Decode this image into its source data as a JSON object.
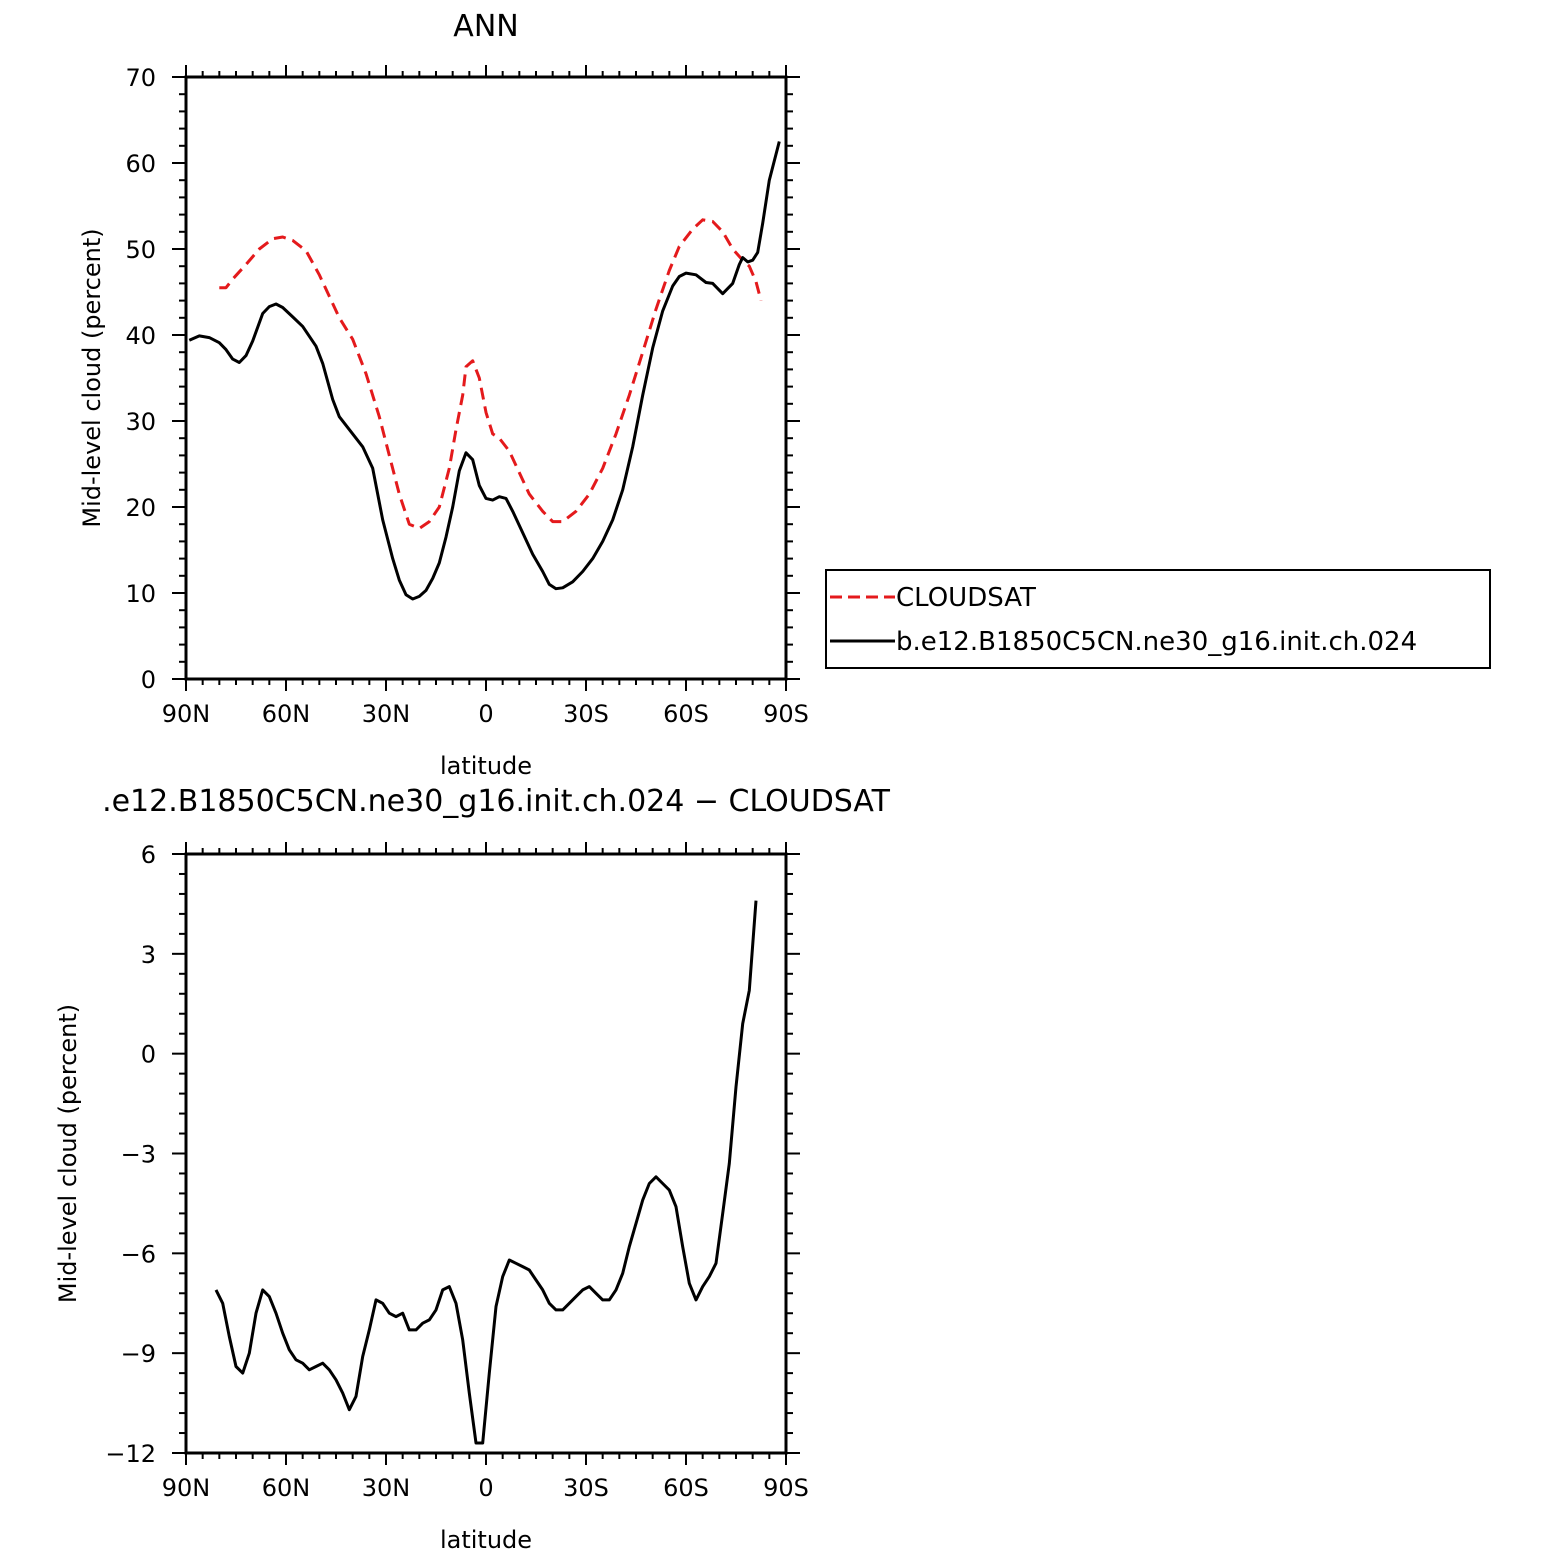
{
  "colors": {
    "obs": "#e41a1c",
    "model": "#000000",
    "axis": "#000000",
    "background": "#ffffff"
  },
  "chart_data": [
    {
      "type": "line",
      "title": "ANN",
      "xlabel": "latitude",
      "ylabel": "Mid-level cloud (percent)",
      "xlim": [
        90,
        -90
      ],
      "ylim": [
        0,
        70
      ],
      "xticks": [
        {
          "value": 90,
          "label": "90N"
        },
        {
          "value": 60,
          "label": "60N"
        },
        {
          "value": 30,
          "label": "30N"
        },
        {
          "value": 0,
          "label": "0"
        },
        {
          "value": -30,
          "label": "30S"
        },
        {
          "value": -60,
          "label": "60S"
        },
        {
          "value": -90,
          "label": "90S"
        }
      ],
      "yticks": [
        {
          "value": 0,
          "label": "0"
        },
        {
          "value": 10,
          "label": "10"
        },
        {
          "value": 20,
          "label": "20"
        },
        {
          "value": 30,
          "label": "30"
        },
        {
          "value": 40,
          "label": "40"
        },
        {
          "value": 50,
          "label": "50"
        },
        {
          "value": 60,
          "label": "60"
        },
        {
          "value": 70,
          "label": "70"
        }
      ],
      "grid": false,
      "legend": "right",
      "series": [
        {
          "name": "CLOUDSAT",
          "style": "dashed",
          "color": "#e41a1c",
          "points": [
            [
              80,
              45.5
            ],
            [
              78,
              45.5
            ],
            [
              76,
              46.5
            ],
            [
              72,
              48.2
            ],
            [
              68,
              50
            ],
            [
              64,
              51.2
            ],
            [
              61,
              51.4
            ],
            [
              58,
              51
            ],
            [
              54,
              49.8
            ],
            [
              50,
              47
            ],
            [
              47,
              44.5
            ],
            [
              44,
              42
            ],
            [
              40,
              39.5
            ],
            [
              36,
              35.5
            ],
            [
              32,
              30.5
            ],
            [
              29,
              26
            ],
            [
              26,
              21.5
            ],
            [
              23,
              18
            ],
            [
              20,
              17.5
            ],
            [
              17,
              18.3
            ],
            [
              14,
              20
            ],
            [
              11,
              24.5
            ],
            [
              9,
              29
            ],
            [
              7,
              33
            ],
            [
              6,
              36.3
            ],
            [
              4,
              37
            ],
            [
              2,
              35
            ],
            [
              0,
              31
            ],
            [
              -2,
              28.5
            ],
            [
              -4,
              28
            ],
            [
              -7,
              26.5
            ],
            [
              -10,
              24
            ],
            [
              -13,
              21.5
            ],
            [
              -17,
              19.5
            ],
            [
              -20,
              18.3
            ],
            [
              -23,
              18.3
            ],
            [
              -27,
              19.5
            ],
            [
              -31,
              21.5
            ],
            [
              -35,
              24.5
            ],
            [
              -39,
              28.5
            ],
            [
              -43,
              33
            ],
            [
              -47,
              38
            ],
            [
              -51,
              43
            ],
            [
              -55,
              47.5
            ],
            [
              -58,
              50.3
            ],
            [
              -62,
              52.3
            ],
            [
              -65,
              53.4
            ],
            [
              -68,
              53.2
            ],
            [
              -71,
              52
            ],
            [
              -74,
              50
            ],
            [
              -77,
              48.7
            ],
            [
              -79,
              48
            ],
            [
              -81,
              46.2
            ],
            [
              -82.5,
              44
            ]
          ]
        },
        {
          "name": "b.e12.B1850C5CN.ne30_g16.init.ch.024",
          "style": "solid",
          "color": "#000000",
          "points": [
            [
              89,
              39.4
            ],
            [
              86,
              39.9
            ],
            [
              83,
              39.7
            ],
            [
              80,
              39.1
            ],
            [
              78,
              38.3
            ],
            [
              76,
              37.2
            ],
            [
              74,
              36.8
            ],
            [
              72,
              37.6
            ],
            [
              70,
              39.3
            ],
            [
              67,
              42.5
            ],
            [
              65,
              43.3
            ],
            [
              63,
              43.6
            ],
            [
              61,
              43.2
            ],
            [
              58,
              42.1
            ],
            [
              55,
              41
            ],
            [
              51,
              38.7
            ],
            [
              49,
              36.7
            ],
            [
              46,
              32.5
            ],
            [
              44,
              30.5
            ],
            [
              41,
              29
            ],
            [
              37,
              27
            ],
            [
              34,
              24.5
            ],
            [
              31,
              18.5
            ],
            [
              28,
              14
            ],
            [
              26,
              11.5
            ],
            [
              24,
              9.8
            ],
            [
              22,
              9.3
            ],
            [
              20,
              9.6
            ],
            [
              18,
              10.3
            ],
            [
              16,
              11.7
            ],
            [
              14,
              13.5
            ],
            [
              12,
              16.5
            ],
            [
              10,
              20
            ],
            [
              8,
              24.2
            ],
            [
              6,
              26.3
            ],
            [
              4,
              25.5
            ],
            [
              2,
              22.5
            ],
            [
              0,
              21
            ],
            [
              -2,
              20.8
            ],
            [
              -4,
              21.2
            ],
            [
              -6,
              21
            ],
            [
              -8,
              19.5
            ],
            [
              -11,
              17
            ],
            [
              -14,
              14.5
            ],
            [
              -17,
              12.5
            ],
            [
              -19,
              11
            ],
            [
              -21,
              10.5
            ],
            [
              -23,
              10.6
            ],
            [
              -26,
              11.3
            ],
            [
              -29,
              12.5
            ],
            [
              -32,
              14
            ],
            [
              -35,
              16
            ],
            [
              -38,
              18.5
            ],
            [
              -41,
              22
            ],
            [
              -44,
              27
            ],
            [
              -47,
              33
            ],
            [
              -50,
              38.5
            ],
            [
              -53,
              42.8
            ],
            [
              -56,
              45.7
            ],
            [
              -58,
              46.8
            ],
            [
              -60,
              47.2
            ],
            [
              -63,
              47
            ],
            [
              -66,
              46.1
            ],
            [
              -68,
              46
            ],
            [
              -71,
              44.8
            ],
            [
              -74,
              46
            ],
            [
              -76,
              48.2
            ],
            [
              -77,
              49
            ],
            [
              -78.5,
              48.5
            ],
            [
              -80,
              48.7
            ],
            [
              -81.5,
              49.6
            ],
            [
              -83,
              53
            ],
            [
              -85,
              58
            ],
            [
              -88,
              62.5
            ]
          ]
        }
      ]
    },
    {
      "type": "line",
      "title": ".e12.B1850C5CN.ne30_g16.init.ch.024 − CLOUDSAT",
      "xlabel": "latitude",
      "ylabel": "Mid-level cloud (percent)",
      "xlim": [
        90,
        -90
      ],
      "ylim": [
        -12,
        6
      ],
      "xticks": [
        {
          "value": 90,
          "label": "90N"
        },
        {
          "value": 60,
          "label": "60N"
        },
        {
          "value": 30,
          "label": "30N"
        },
        {
          "value": 0,
          "label": "0"
        },
        {
          "value": -30,
          "label": "30S"
        },
        {
          "value": -60,
          "label": "60S"
        },
        {
          "value": -90,
          "label": "90S"
        }
      ],
      "yticks": [
        {
          "value": -12,
          "label": "−12"
        },
        {
          "value": -9,
          "label": "−9"
        },
        {
          "value": -6,
          "label": "−6"
        },
        {
          "value": -3,
          "label": "−3"
        },
        {
          "value": 0,
          "label": "0"
        },
        {
          "value": 3,
          "label": "3"
        },
        {
          "value": 6,
          "label": "6"
        }
      ],
      "grid": false,
      "legend": "none",
      "series": [
        {
          "style": "solid",
          "color": "#000000",
          "points": [
            [
              81,
              -7.1
            ],
            [
              79,
              -7.5
            ],
            [
              77,
              -8.5
            ],
            [
              75,
              -9.4
            ],
            [
              73,
              -9.6
            ],
            [
              71,
              -9
            ],
            [
              69,
              -7.8
            ],
            [
              67,
              -7.1
            ],
            [
              65,
              -7.3
            ],
            [
              63,
              -7.8
            ],
            [
              61,
              -8.4
            ],
            [
              59,
              -8.9
            ],
            [
              57,
              -9.2
            ],
            [
              55,
              -9.3
            ],
            [
              53,
              -9.5
            ],
            [
              51,
              -9.4
            ],
            [
              49,
              -9.3
            ],
            [
              47,
              -9.5
            ],
            [
              45,
              -9.8
            ],
            [
              43,
              -10.2
            ],
            [
              41,
              -10.7
            ],
            [
              39,
              -10.3
            ],
            [
              37,
              -9.1
            ],
            [
              35,
              -8.3
            ],
            [
              33,
              -7.4
            ],
            [
              31,
              -7.5
            ],
            [
              29,
              -7.8
            ],
            [
              27,
              -7.9
            ],
            [
              25,
              -7.8
            ],
            [
              23,
              -8.3
            ],
            [
              21,
              -8.3
            ],
            [
              19,
              -8.1
            ],
            [
              17,
              -8
            ],
            [
              15,
              -7.7
            ],
            [
              13,
              -7.1
            ],
            [
              11,
              -7
            ],
            [
              9,
              -7.5
            ],
            [
              7,
              -8.6
            ],
            [
              5,
              -10.2
            ],
            [
              3,
              -11.7
            ],
            [
              1,
              -11.7
            ],
            [
              -1,
              -9.6
            ],
            [
              -3,
              -7.6
            ],
            [
              -5,
              -6.7
            ],
            [
              -7,
              -6.2
            ],
            [
              -9,
              -6.3
            ],
            [
              -11,
              -6.4
            ],
            [
              -13,
              -6.5
            ],
            [
              -15,
              -6.8
            ],
            [
              -17,
              -7.1
            ],
            [
              -19,
              -7.5
            ],
            [
              -21,
              -7.7
            ],
            [
              -23,
              -7.7
            ],
            [
              -25,
              -7.5
            ],
            [
              -27,
              -7.3
            ],
            [
              -29,
              -7.1
            ],
            [
              -31,
              -7
            ],
            [
              -33,
              -7.2
            ],
            [
              -35,
              -7.4
            ],
            [
              -37,
              -7.4
            ],
            [
              -39,
              -7.1
            ],
            [
              -41,
              -6.6
            ],
            [
              -43,
              -5.8
            ],
            [
              -45,
              -5.1
            ],
            [
              -47,
              -4.4
            ],
            [
              -49,
              -3.9
            ],
            [
              -51,
              -3.7
            ],
            [
              -53,
              -3.9
            ],
            [
              -55,
              -4.1
            ],
            [
              -57,
              -4.6
            ],
            [
              -59,
              -5.8
            ],
            [
              -61,
              -6.9
            ],
            [
              -63,
              -7.4
            ],
            [
              -65,
              -7
            ],
            [
              -67,
              -6.7
            ],
            [
              -69,
              -6.3
            ],
            [
              -71,
              -4.8
            ],
            [
              -73,
              -3.3
            ],
            [
              -75,
              -1
            ],
            [
              -77,
              0.9
            ],
            [
              -79,
              1.9
            ],
            [
              -81,
              4.6
            ]
          ]
        }
      ]
    }
  ]
}
